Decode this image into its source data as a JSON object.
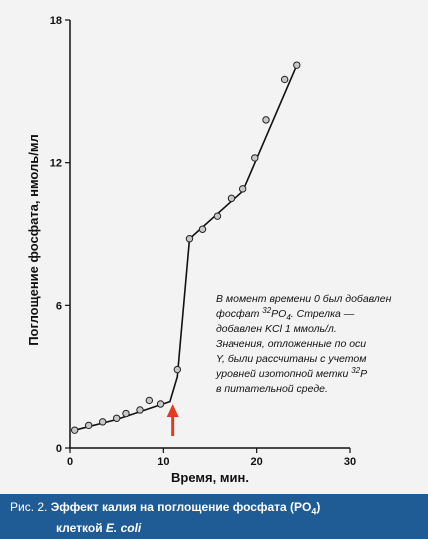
{
  "chart_data": {
    "type": "scatter",
    "xlabel": "Время, мин.",
    "ylabel": "Поглощение фосфата, нмоль/мл",
    "xlim": [
      0,
      30
    ],
    "ylim": [
      0,
      18
    ],
    "xticks": [
      "0",
      "10",
      "20",
      "30"
    ],
    "yticks": [
      "0",
      "6",
      "12",
      "18"
    ],
    "series": [
      {
        "points": [
          {
            "x": 0.5,
            "y": 0.75
          },
          {
            "x": 2.0,
            "y": 0.95
          },
          {
            "x": 3.5,
            "y": 1.1
          },
          {
            "x": 5.0,
            "y": 1.25
          },
          {
            "x": 6.0,
            "y": 1.45
          },
          {
            "x": 7.5,
            "y": 1.6
          },
          {
            "x": 8.5,
            "y": 2.0
          },
          {
            "x": 9.7,
            "y": 1.85
          },
          {
            "x": 11.5,
            "y": 3.3
          },
          {
            "x": 12.8,
            "y": 8.8
          },
          {
            "x": 14.2,
            "y": 9.2
          },
          {
            "x": 15.8,
            "y": 9.75
          },
          {
            "x": 17.3,
            "y": 10.5
          },
          {
            "x": 18.5,
            "y": 10.9
          },
          {
            "x": 19.8,
            "y": 12.2
          },
          {
            "x": 21.0,
            "y": 13.8
          },
          {
            "x": 23.0,
            "y": 15.5
          },
          {
            "x": 24.3,
            "y": 16.1
          }
        ],
        "line": [
          {
            "x": 0.5,
            "y": 0.75
          },
          {
            "x": 5.0,
            "y": 1.2
          },
          {
            "x": 10.7,
            "y": 1.95
          },
          {
            "x": 11.5,
            "y": 3.0
          },
          {
            "x": 12.8,
            "y": 8.8
          },
          {
            "x": 18.5,
            "y": 10.8
          },
          {
            "x": 24.3,
            "y": 16.1
          }
        ]
      }
    ],
    "arrow_x": 11,
    "annotation": {
      "line1": "В момент времени 0 был добавлен",
      "line2_pre": "фосфат ",
      "line2_sup": "32",
      "line2_mid": "PO",
      "line2_sub": "4",
      "line2_post": ". Стрелка —",
      "line3": "добавлен KCl 1 ммоль/л.",
      "line4": "Значения, отложенные по оси",
      "line5": "Y, были рассчитаны с учетом",
      "line6_pre": "уровней изотопной метки ",
      "line6_sup": "32",
      "line6_post": "P",
      "line7": "в питательной среде."
    },
    "colors": {
      "line": "#111111",
      "marker_fill": "#c8c8c8",
      "arrow": "#e23b1f"
    }
  },
  "caption": {
    "label": "Рис. 2.",
    "title_pre": "Эффект калия на поглощение фосфата (PO",
    "title_sub": "4",
    "title_post": ")",
    "line2_pre": "клеткой ",
    "line2_italic": "E. coli",
    "background": "#1f5c95"
  }
}
